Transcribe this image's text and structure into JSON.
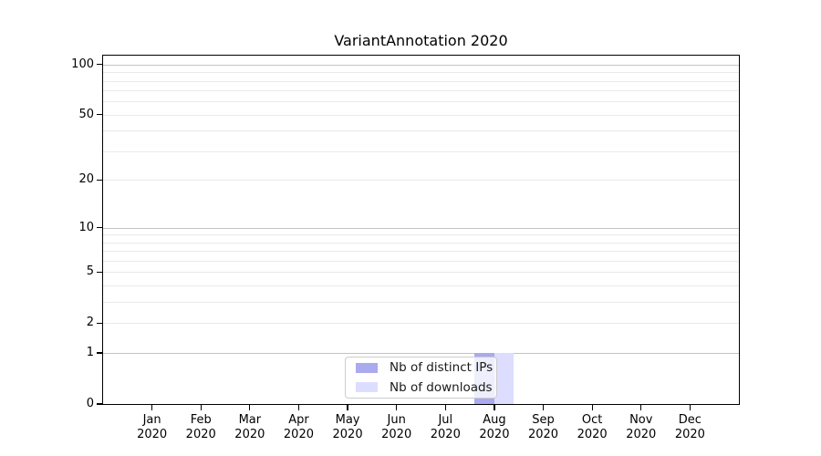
{
  "title": "VariantAnnotation 2020",
  "legend": {
    "items": [
      {
        "label": "Nb of distinct IPs",
        "color": "#aaaaee"
      },
      {
        "label": "Nb of downloads",
        "color": "#ddddff"
      }
    ]
  },
  "chart_data": {
    "type": "bar",
    "title": "VariantAnnotation 2020",
    "xlabel": "",
    "ylabel": "",
    "categories": [
      "Jan 2020",
      "Feb 2020",
      "Mar 2020",
      "Apr 2020",
      "May 2020",
      "Jun 2020",
      "Jul 2020",
      "Aug 2020",
      "Sep 2020",
      "Oct 2020",
      "Nov 2020",
      "Dec 2020"
    ],
    "series": [
      {
        "name": "Nb of distinct IPs",
        "color": "#aaaaee",
        "values": [
          0,
          0,
          0,
          0,
          0,
          0,
          0,
          1,
          0,
          0,
          0,
          0
        ]
      },
      {
        "name": "Nb of downloads",
        "color": "#ddddff",
        "values": [
          0,
          0,
          0,
          0,
          0,
          0,
          0,
          1,
          0,
          0,
          0,
          0
        ]
      }
    ],
    "yscale": "log10(value+1)",
    "ylim": [
      0,
      113
    ],
    "ytick_labels": [
      0,
      1,
      2,
      5,
      10,
      20,
      50,
      100
    ],
    "major_gridlines": [
      1,
      10,
      100
    ],
    "minor_gridlines": [
      2,
      3,
      4,
      5,
      6,
      7,
      8,
      9,
      20,
      30,
      40,
      50,
      60,
      70,
      80,
      90
    ],
    "grid": true,
    "legend_position": "inside bottom-center"
  },
  "colors": {
    "background": "#ffffff",
    "axis": "#000000",
    "major_grid": "#c4c4c4",
    "minor_grid": "#e9e9e9",
    "legend_border": "#cccccc"
  }
}
